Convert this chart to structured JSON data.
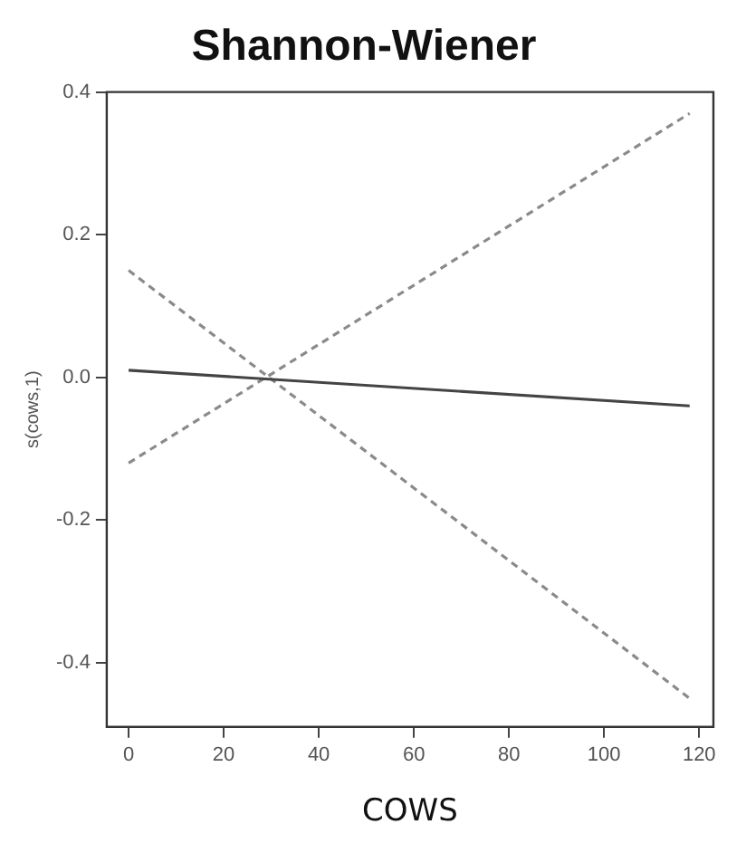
{
  "chart_data": {
    "type": "line",
    "title": "Shannon-Wiener",
    "xlabel": "COWS",
    "ylabel": "s(cows,1)",
    "xlim": [
      -4.6,
      123
    ],
    "xticks": [
      0,
      20,
      40,
      60,
      80,
      100,
      120
    ],
    "ylim": [
      -0.49,
      0.4
    ],
    "yticks": [
      -0.4,
      -0.2,
      {
        "value": 0,
        "label": "0.0"
      },
      0.2,
      0.4
    ],
    "grid": false,
    "legend": false,
    "marker": "none",
    "x": [
      0,
      118
    ],
    "series": [
      {
        "values": [
          0.01,
          -0.04
        ],
        "color": "#444444",
        "line_style": "solid"
      },
      {
        "values": [
          0.15,
          -0.45
        ],
        "color": "#8a8a8a",
        "line_style": "dashed"
      },
      {
        "values": [
          -0.12,
          0.37
        ],
        "color": "#8a8a8a",
        "line_style": "dashed"
      }
    ]
  }
}
